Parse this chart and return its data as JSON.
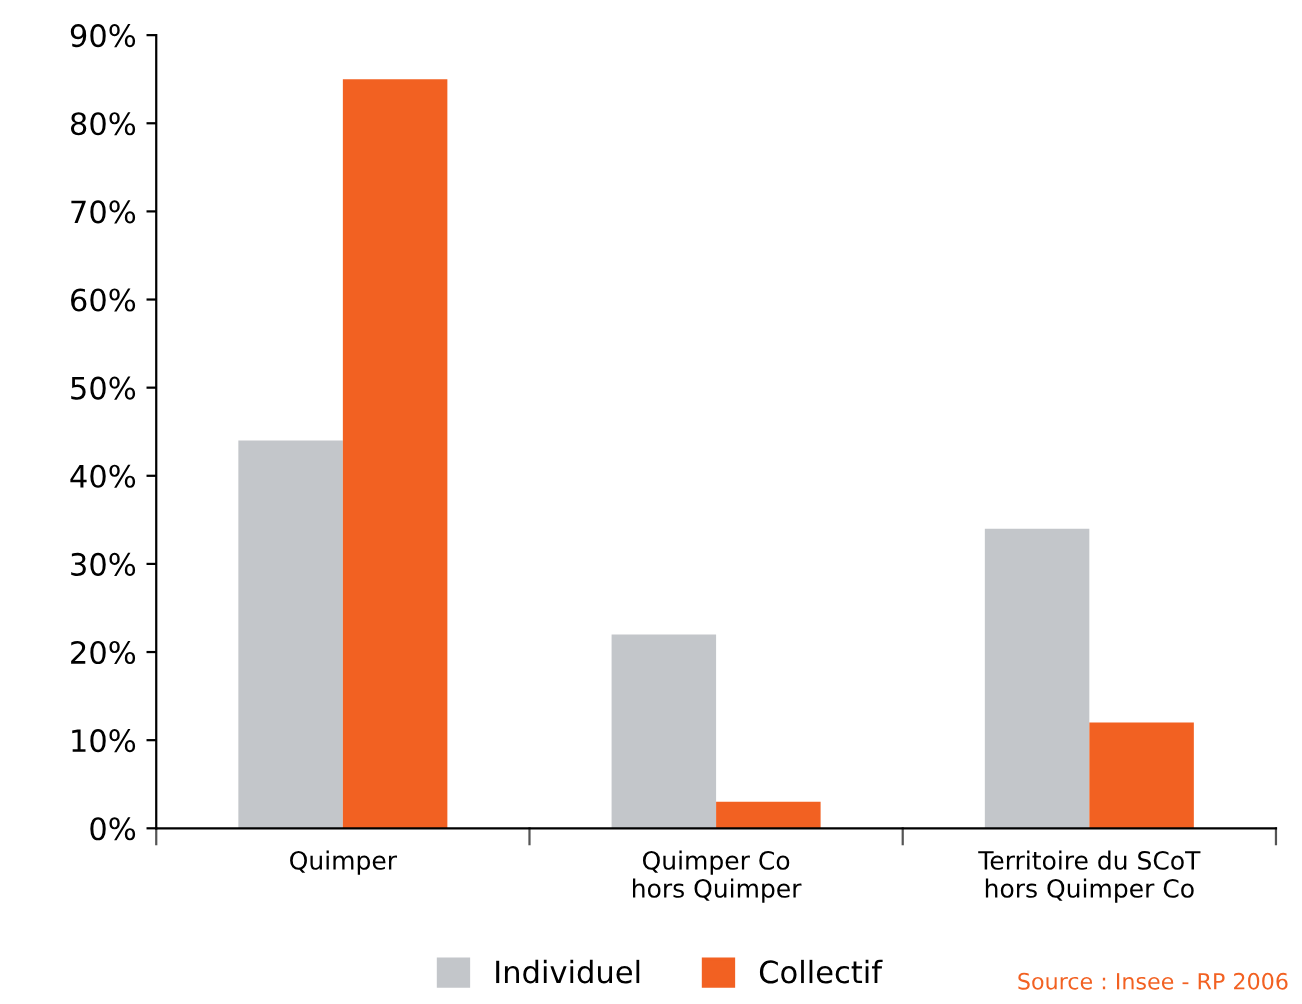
{
  "chart_data": {
    "type": "bar",
    "categories": [
      "Quimper",
      "Quimper Co\nhors Quimper",
      "Territoire du SCoT\nhors Quimper Co"
    ],
    "series": [
      {
        "name": "Individuel",
        "color": "#c3c6ca",
        "values": [
          44,
          22,
          34
        ]
      },
      {
        "name": "Collectif",
        "color": "#f26122",
        "values": [
          85,
          3,
          12
        ]
      }
    ],
    "ylim": [
      0,
      90
    ],
    "yticks": [
      {
        "value": 0,
        "label": "0%"
      },
      {
        "value": 10,
        "label": "10%"
      },
      {
        "value": 20,
        "label": "20%"
      },
      {
        "value": 30,
        "label": "30%"
      },
      {
        "value": 40,
        "label": "40%"
      },
      {
        "value": 50,
        "label": "50%"
      },
      {
        "value": 60,
        "label": "60%"
      },
      {
        "value": 70,
        "label": "70%"
      },
      {
        "value": 80,
        "label": "80%"
      },
      {
        "value": 90,
        "label": "90%"
      }
    ],
    "grid": false,
    "legend": "bottom",
    "annotations": [
      "Source : Insee - RP 2006"
    ]
  }
}
